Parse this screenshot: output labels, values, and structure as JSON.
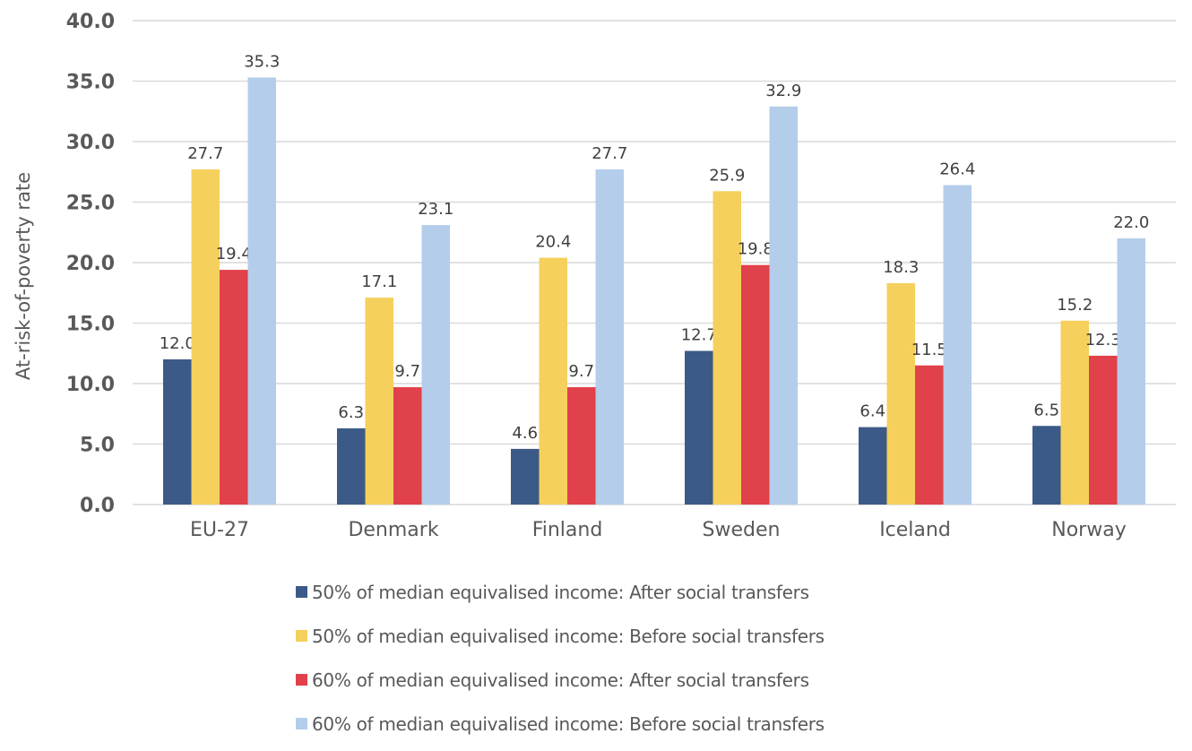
{
  "chart_data": {
    "type": "bar",
    "title": "",
    "xlabel": "",
    "ylabel": "At-risk-of-poverty rate",
    "ylim": [
      0,
      40
    ],
    "yticks": [
      "0.0",
      "5.0",
      "10.0",
      "15.0",
      "20.0",
      "25.0",
      "30.0",
      "35.0",
      "40.0"
    ],
    "grid": true,
    "legend_position": "bottom",
    "categories": [
      "EU-27",
      "Denmark",
      "Finland",
      "Sweden",
      "Iceland",
      "Norway"
    ],
    "series": [
      {
        "name": "50% of median equivalised income: After social transfers",
        "color": "#3c5a87",
        "values": [
          12.0,
          6.3,
          4.6,
          12.7,
          6.4,
          6.5
        ]
      },
      {
        "name": "50% of median equivalised income: Before social transfers",
        "color": "#f5d05c",
        "values": [
          27.7,
          17.1,
          20.4,
          25.9,
          18.3,
          15.2
        ]
      },
      {
        "name": "60% of median equivalised income: After social transfers",
        "color": "#e0414a",
        "values": [
          19.4,
          9.7,
          9.7,
          19.8,
          11.5,
          12.3
        ]
      },
      {
        "name": "60% of median equivalised income: Before social transfers",
        "color": "#b4cdeb",
        "values": [
          35.3,
          23.1,
          27.7,
          32.9,
          26.4,
          22.0
        ]
      }
    ]
  }
}
